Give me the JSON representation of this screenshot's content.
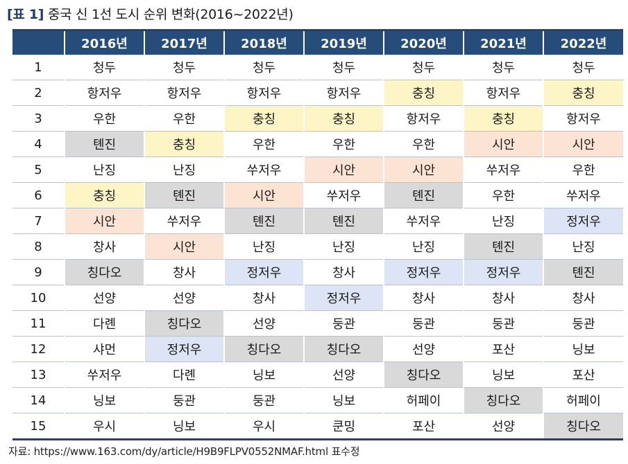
{
  "title": {
    "tag": "[표 1]",
    "text": "중국 신 1선 도시 순위 변화(2016~2022년)"
  },
  "table": {
    "headers": [
      "",
      "2016년",
      "2017년",
      "2018년",
      "2019년",
      "2020년",
      "2021년",
      "2022년"
    ],
    "rows": [
      {
        "rank": "1",
        "cells": [
          "청두",
          "청두",
          "청두",
          "청두",
          "청두",
          "청두",
          "청두"
        ],
        "hl": [
          "",
          "",
          "",
          "",
          "",
          "",
          ""
        ]
      },
      {
        "rank": "2",
        "cells": [
          "항저우",
          "항저우",
          "항저우",
          "항저우",
          "충칭",
          "항저우",
          "충칭"
        ],
        "hl": [
          "",
          "",
          "",
          "",
          "yellow",
          "",
          "yellow"
        ]
      },
      {
        "rank": "3",
        "cells": [
          "우한",
          "우한",
          "충칭",
          "충칭",
          "항저우",
          "충칭",
          "항저우"
        ],
        "hl": [
          "",
          "",
          "yellow",
          "yellow",
          "",
          "yellow",
          ""
        ]
      },
      {
        "rank": "4",
        "cells": [
          "톈진",
          "충칭",
          "우한",
          "우한",
          "우한",
          "시안",
          "시안"
        ],
        "hl": [
          "gray",
          "yellow",
          "",
          "",
          "",
          "orange",
          "orange"
        ]
      },
      {
        "rank": "5",
        "cells": [
          "난징",
          "난징",
          "쑤저우",
          "시안",
          "시안",
          "쑤저우",
          "우한"
        ],
        "hl": [
          "",
          "",
          "",
          "orange",
          "orange",
          "",
          ""
        ]
      },
      {
        "rank": "6",
        "cells": [
          "충칭",
          "톈진",
          "시안",
          "쑤저우",
          "톈진",
          "우한",
          "쑤저우"
        ],
        "hl": [
          "yellow",
          "gray",
          "orange",
          "",
          "gray",
          "",
          ""
        ]
      },
      {
        "rank": "7",
        "cells": [
          "시안",
          "쑤저우",
          "톈진",
          "톈진",
          "쑤저우",
          "난징",
          "정저우"
        ],
        "hl": [
          "orange",
          "",
          "gray",
          "gray",
          "",
          "",
          "blue"
        ]
      },
      {
        "rank": "8",
        "cells": [
          "창사",
          "시안",
          "난징",
          "난징",
          "난징",
          "톈진",
          "난징"
        ],
        "hl": [
          "",
          "orange",
          "",
          "",
          "",
          "gray",
          ""
        ]
      },
      {
        "rank": "9",
        "cells": [
          "칭다오",
          "창사",
          "정저우",
          "창사",
          "정저우",
          "정저우",
          "톈진"
        ],
        "hl": [
          "gray",
          "",
          "blue",
          "",
          "blue",
          "blue",
          "gray"
        ]
      },
      {
        "rank": "10",
        "cells": [
          "선양",
          "선양",
          "창사",
          "정저우",
          "창사",
          "창사",
          "창사"
        ],
        "hl": [
          "",
          "",
          "",
          "blue",
          "",
          "",
          ""
        ]
      },
      {
        "rank": "11",
        "cells": [
          "다롄",
          "칭다오",
          "선양",
          "둥관",
          "둥관",
          "둥관",
          "둥관"
        ],
        "hl": [
          "",
          "gray",
          "",
          "",
          "",
          "",
          ""
        ]
      },
      {
        "rank": "12",
        "cells": [
          "샤먼",
          "정저우",
          "칭다오",
          "칭다오",
          "선양",
          "포산",
          "닝보"
        ],
        "hl": [
          "",
          "blue",
          "gray",
          "gray",
          "",
          "",
          ""
        ]
      },
      {
        "rank": "13",
        "cells": [
          "쑤저우",
          "다롄",
          "닝보",
          "선양",
          "칭다오",
          "닝보",
          "포산"
        ],
        "hl": [
          "",
          "",
          "",
          "",
          "gray",
          "",
          ""
        ]
      },
      {
        "rank": "14",
        "cells": [
          "닝보",
          "둥관",
          "둥관",
          "닝보",
          "허페이",
          "칭다오",
          "허페이"
        ],
        "hl": [
          "",
          "",
          "",
          "",
          "",
          "gray",
          ""
        ]
      },
      {
        "rank": "15",
        "cells": [
          "우시",
          "닝보",
          "우시",
          "쿤밍",
          "포산",
          "선양",
          "칭다오"
        ],
        "hl": [
          "",
          "",
          "",
          "",
          "",
          "",
          "gray"
        ]
      }
    ],
    "highlight_colors": {
      "yellow": "#fdf5c6",
      "orange": "#fde3d3",
      "gray": "#d9d9d9",
      "blue": "#dde4f6"
    },
    "header_color": "#264d7a"
  },
  "source": "자료: https://www.163.com/dy/article/H9B9FLPV0552NMAF.html 표수정"
}
